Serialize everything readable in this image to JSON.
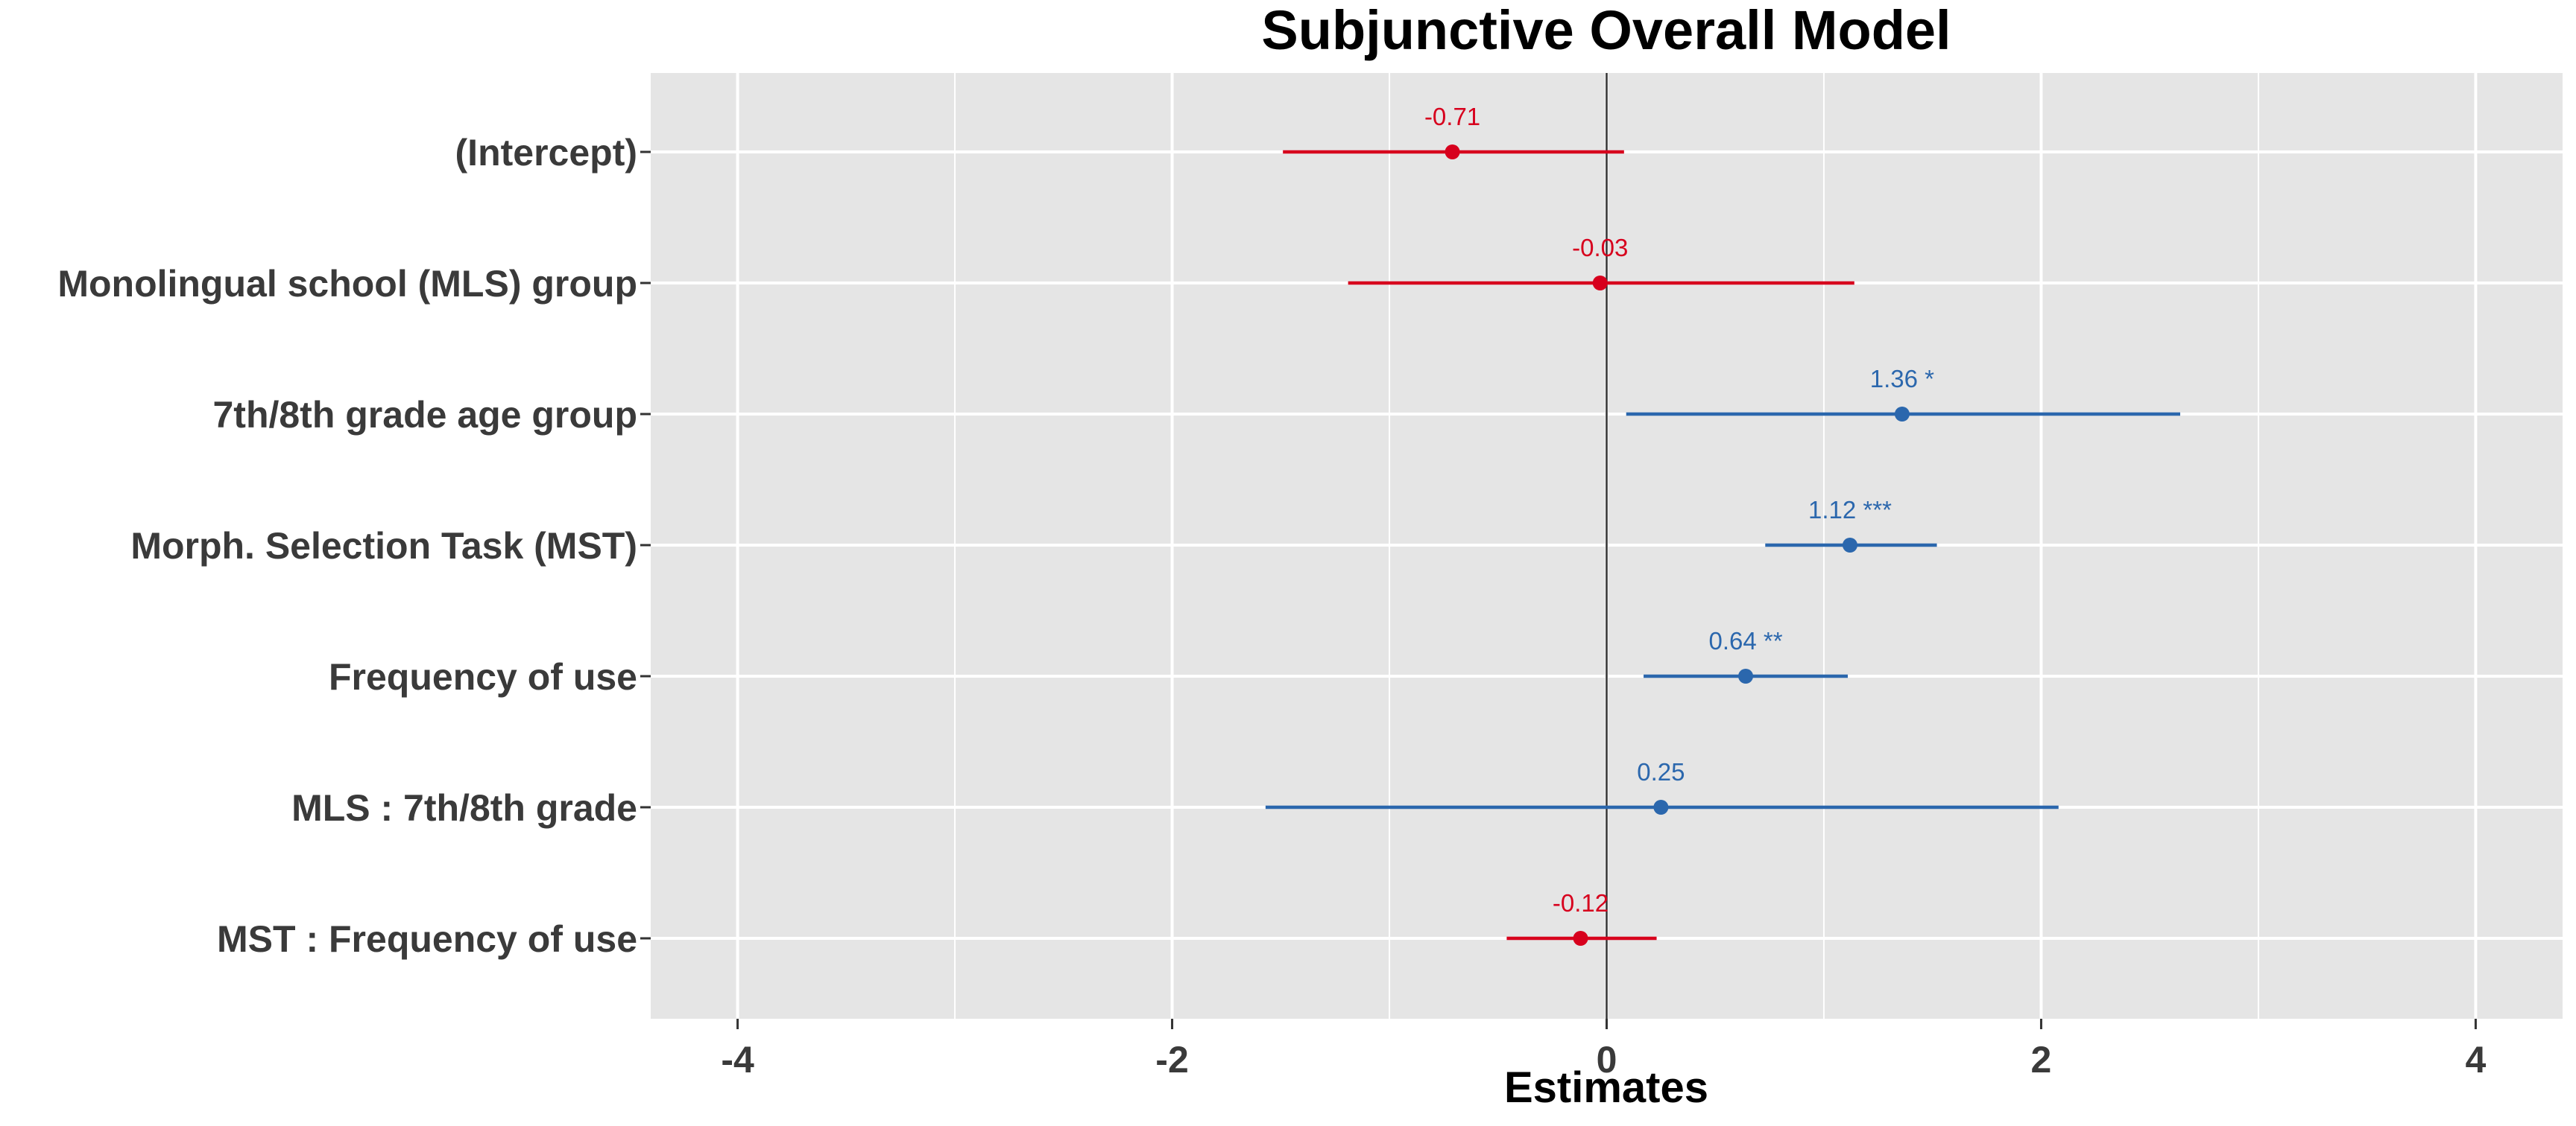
{
  "chart_data": {
    "type": "scatter",
    "title": "Subjunctive Overall Model",
    "xlabel": "Estimates",
    "ylabel": "",
    "xlim": [
      -4.4,
      4.4
    ],
    "x_ticks": [
      -4,
      -2,
      0,
      2,
      4
    ],
    "x_tick_labels": [
      "-4",
      "-2",
      "0",
      "2",
      "4"
    ],
    "reference_line_x": 0,
    "grid": true,
    "legend": "none",
    "colors": {
      "positive": "#2B67AD",
      "negative": "#D7001D",
      "panel": "#E5E5E5",
      "grid": "#FFFFFF",
      "reference_line": "#333333"
    },
    "terms": [
      {
        "label": "(Intercept)",
        "estimate": -0.71,
        "ci_low": -1.49,
        "ci_high": 0.08,
        "value_label": "-0.71"
      },
      {
        "label": "Monolingual school (MLS) group",
        "estimate": -0.03,
        "ci_low": -1.19,
        "ci_high": 1.14,
        "value_label": "-0.03"
      },
      {
        "label": "7th/8th grade age group",
        "estimate": 1.36,
        "ci_low": 0.09,
        "ci_high": 2.64,
        "value_label": "1.36 *"
      },
      {
        "label": "Morph. Selection Task (MST)",
        "estimate": 1.12,
        "ci_low": 0.73,
        "ci_high": 1.52,
        "value_label": "1.12 ***"
      },
      {
        "label": "Frequency of use",
        "estimate": 0.64,
        "ci_low": 0.17,
        "ci_high": 1.11,
        "value_label": "0.64 **"
      },
      {
        "label": "MLS : 7th/8th grade",
        "estimate": 0.25,
        "ci_low": -1.57,
        "ci_high": 2.08,
        "value_label": "0.25"
      },
      {
        "label": "MST : Frequency of use",
        "estimate": -0.12,
        "ci_low": -0.46,
        "ci_high": 0.23,
        "value_label": "-0.12"
      }
    ]
  }
}
